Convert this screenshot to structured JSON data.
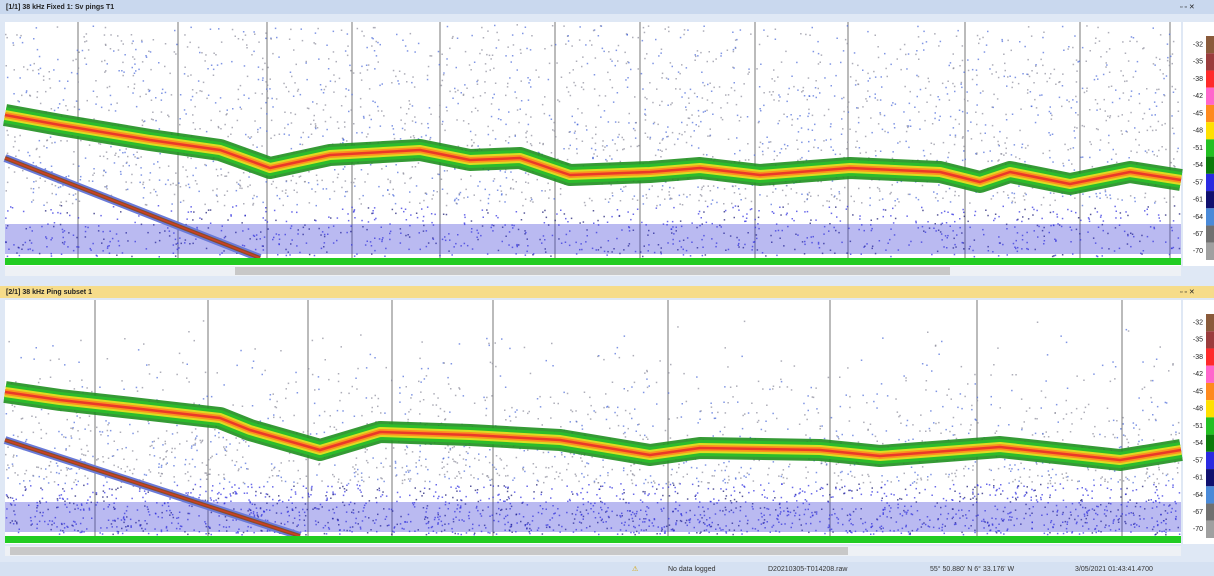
{
  "windows": [
    {
      "title": "[1/1] 38 kHz Fixed 1: Sv pings T1",
      "scale": [
        "-32",
        "-35",
        "-38",
        "-42",
        "-45",
        "-48",
        "-51",
        "-54",
        "-57",
        "-61",
        "-64",
        "-67",
        "-70"
      ]
    },
    {
      "title": "[2/1] 38 kHz Ping subset 1",
      "scale": [
        "-32",
        "-35",
        "-38",
        "-42",
        "-45",
        "-48",
        "-51",
        "-54",
        "-57",
        "-61",
        "-64",
        "-67",
        "-70"
      ]
    }
  ],
  "status": {
    "message": "No data logged",
    "file": "D20210305-T014208.raw",
    "position": "55° 50.880' N 6° 33.176' W",
    "time": "3/05/2021 01:43:41.4700"
  }
}
